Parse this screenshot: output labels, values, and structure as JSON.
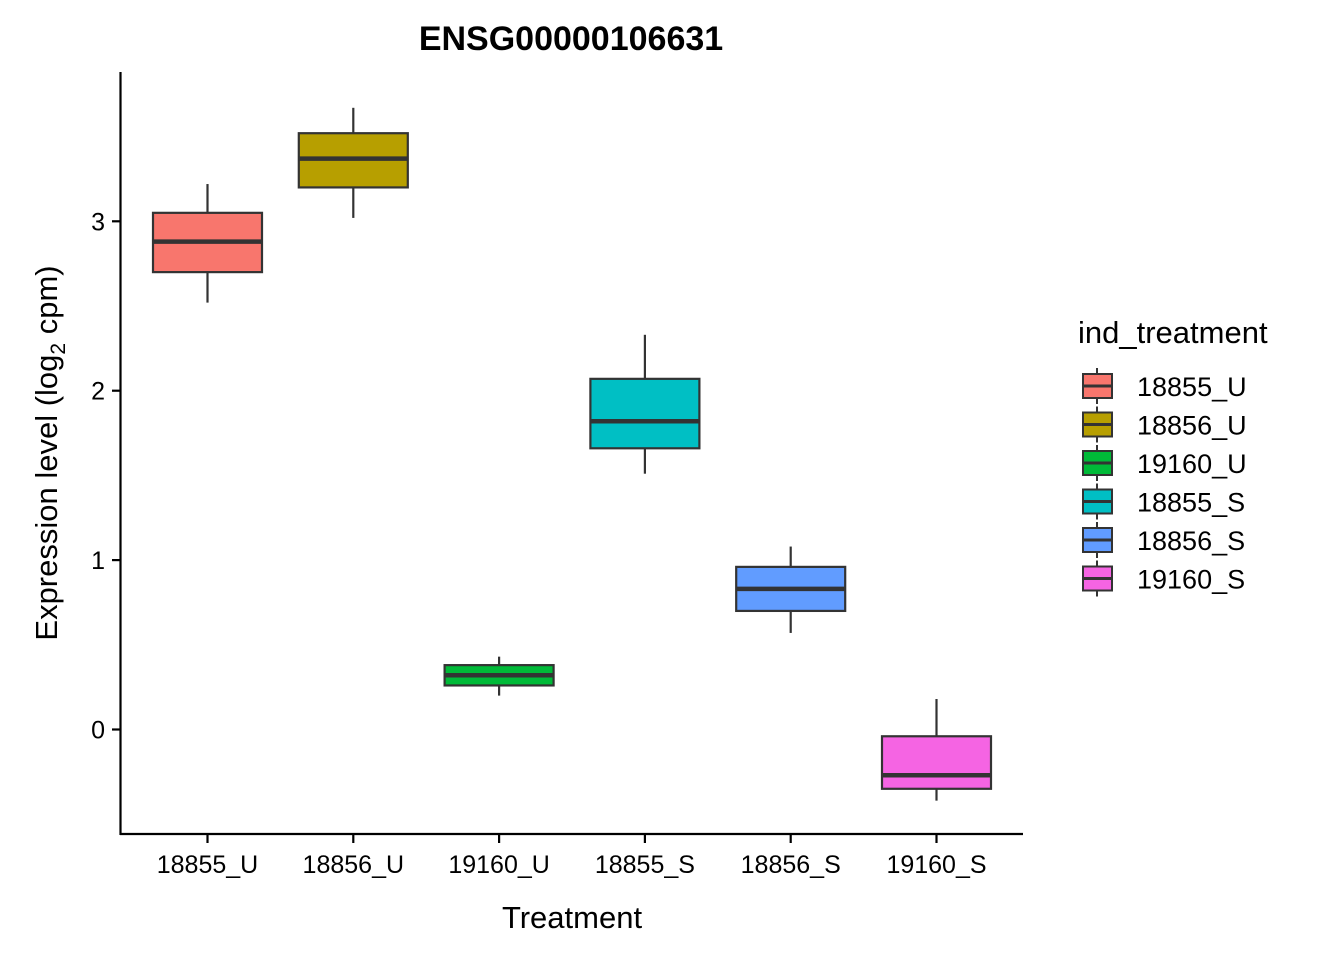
{
  "chart_data": {
    "type": "box",
    "title": "ENSG00000106631",
    "xlabel": "Treatment",
    "ylabel_main": "Expression level (log",
    "ylabel_sub": "2",
    "ylabel_end": " cpm)",
    "ylim": [
      -0.62,
      3.87
    ],
    "yticks": [
      "0",
      "1",
      "2",
      "3"
    ],
    "grid": false,
    "legend_position": "right",
    "legend_title": "ind_treatment",
    "categories": [
      "18855_U",
      "18856_U",
      "19160_U",
      "18855_S",
      "18856_S",
      "19160_S"
    ],
    "boxes": [
      {
        "name": "18855_U",
        "color": "#F8766D",
        "whisker_low": 2.52,
        "q1": 2.7,
        "median": 2.88,
        "q3": 3.05,
        "whisker_high": 3.22
      },
      {
        "name": "18856_U",
        "color": "#B79F00",
        "whisker_low": 3.02,
        "q1": 3.2,
        "median": 3.37,
        "q3": 3.52,
        "whisker_high": 3.67
      },
      {
        "name": "19160_U",
        "color": "#00BA38",
        "whisker_low": 0.2,
        "q1": 0.26,
        "median": 0.32,
        "q3": 0.38,
        "whisker_high": 0.43
      },
      {
        "name": "18855_S",
        "color": "#00BFC4",
        "whisker_low": 1.51,
        "q1": 1.66,
        "median": 1.82,
        "q3": 2.07,
        "whisker_high": 2.33
      },
      {
        "name": "18856_S",
        "color": "#619CFF",
        "whisker_low": 0.57,
        "q1": 0.7,
        "median": 0.83,
        "q3": 0.96,
        "whisker_high": 1.08
      },
      {
        "name": "19160_S",
        "color": "#F564E3",
        "whisker_low": -0.42,
        "q1": -0.35,
        "median": -0.27,
        "q3": -0.04,
        "whisker_high": 0.18
      }
    ]
  }
}
